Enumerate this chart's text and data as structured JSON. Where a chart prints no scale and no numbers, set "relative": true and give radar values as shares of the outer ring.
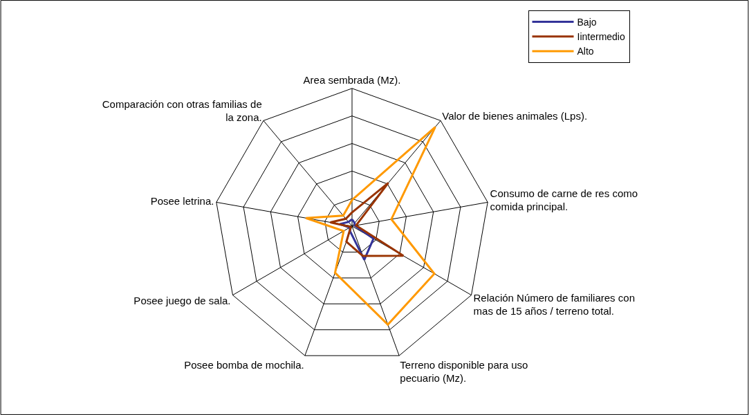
{
  "chart_data": {
    "type": "radar",
    "relative": true,
    "legend": "top right",
    "marker": "none",
    "line_style": "solid",
    "grid": true,
    "categories": [
      "Area sembrada (Mz).",
      "Valor de bienes animales (Lps).",
      "Consumo de carne de res como comida principal.",
      "Relación Número de familiares con mas de 15 años / terreno total.",
      "Terreno disponible para uso pecuario (Mz).",
      "Posee bomba de mochila.",
      "Posee juego de sala.",
      "Posee letrina.",
      "Comparación con otras familias de la zona."
    ],
    "series": [
      {
        "name": "Bajo",
        "color": "#333399",
        "values": [
          0.05,
          0.03,
          0.02,
          0.18,
          0.26,
          0.04,
          0.02,
          0.09,
          0.04
        ]
      },
      {
        "name": "Iintermedio",
        "color": "#993300",
        "values": [
          0.1,
          0.41,
          0.03,
          0.43,
          0.23,
          0.12,
          0.01,
          0.16,
          0.07
        ]
      },
      {
        "name": "Alto",
        "color": "#ff9900",
        "values": [
          0.19,
          0.94,
          0.29,
          0.69,
          0.76,
          0.36,
          0.07,
          0.34,
          0.1
        ]
      }
    ]
  }
}
